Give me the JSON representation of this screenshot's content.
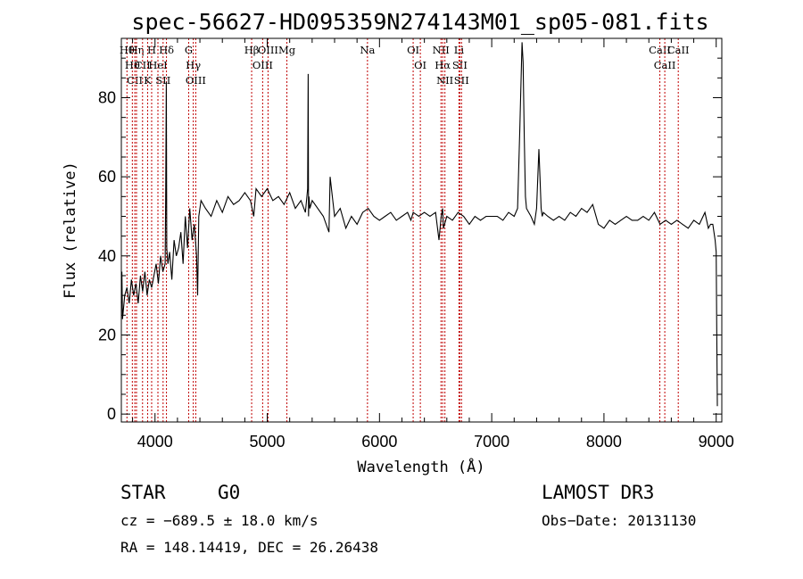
{
  "chart_data": {
    "type": "line",
    "title": "spec-56627-HD095359N274143M01_sp05-081.fits",
    "xlabel": "Wavelength (Å)",
    "ylabel": "Flux (relative)",
    "xlim": [
      3700,
      9050
    ],
    "ylim": [
      -2,
      95
    ],
    "xticks": [
      4000,
      5000,
      6000,
      7000,
      8000,
      9000
    ],
    "yticks": [
      0,
      20,
      40,
      60,
      80
    ],
    "series": [
      {
        "name": "spectrum",
        "x": [
          3700,
          3705,
          3710,
          3730,
          3750,
          3770,
          3790,
          3810,
          3830,
          3850,
          3870,
          3890,
          3910,
          3930,
          3950,
          3970,
          3990,
          4010,
          4030,
          4050,
          4070,
          4090,
          4095,
          4101,
          4105,
          4115,
          4130,
          4150,
          4170,
          4190,
          4210,
          4230,
          4250,
          4270,
          4290,
          4310,
          4330,
          4350,
          4370,
          4380,
          4390,
          4410,
          4450,
          4500,
          4550,
          4600,
          4650,
          4700,
          4750,
          4800,
          4850,
          4880,
          4900,
          4950,
          5000,
          5050,
          5100,
          5150,
          5200,
          5250,
          5300,
          5340,
          5360,
          5365,
          5368,
          5372,
          5380,
          5400,
          5450,
          5500,
          5550,
          5560,
          5600,
          5650,
          5700,
          5750,
          5800,
          5850,
          5900,
          5950,
          6000,
          6050,
          6100,
          6150,
          6200,
          6250,
          6280,
          6300,
          6350,
          6400,
          6450,
          6500,
          6530,
          6550,
          6563,
          6570,
          6600,
          6650,
          6700,
          6750,
          6800,
          6850,
          6900,
          6950,
          7000,
          7050,
          7100,
          7150,
          7200,
          7230,
          7250,
          7270,
          7280,
          7290,
          7300,
          7310,
          7330,
          7350,
          7380,
          7400,
          7420,
          7430,
          7440,
          7450,
          7460,
          7500,
          7550,
          7600,
          7650,
          7700,
          7750,
          7800,
          7850,
          7900,
          7950,
          8000,
          8050,
          8100,
          8150,
          8200,
          8250,
          8300,
          8350,
          8400,
          8450,
          8500,
          8550,
          8600,
          8650,
          8700,
          8750,
          8800,
          8850,
          8900,
          8930,
          8950,
          8970,
          8990,
          9000,
          9005,
          9010
        ],
        "values": [
          28,
          36,
          24,
          30,
          32,
          28,
          34,
          30,
          33,
          28,
          35,
          31,
          36,
          30,
          34,
          32,
          35,
          38,
          33,
          40,
          36,
          38,
          55,
          84,
          42,
          38,
          41,
          34,
          44,
          40,
          42,
          46,
          38,
          50,
          42,
          52,
          44,
          48,
          40,
          30,
          50,
          54,
          52,
          50,
          54,
          51,
          55,
          53,
          54,
          56,
          54,
          50,
          57,
          55,
          57,
          54,
          55,
          53,
          56,
          52,
          54,
          51,
          57,
          86,
          50,
          55,
          52,
          54,
          52,
          50,
          46,
          60,
          50,
          52,
          47,
          50,
          48,
          51,
          52,
          50,
          49,
          50,
          51,
          49,
          50,
          51,
          49,
          51,
          50,
          51,
          50,
          51,
          44,
          50,
          52,
          47,
          50,
          49,
          51,
          50,
          48,
          50,
          49,
          50,
          50,
          50,
          49,
          51,
          50,
          52,
          72,
          94,
          89,
          70,
          55,
          52,
          51,
          50,
          48,
          52,
          67,
          60,
          52,
          50,
          51,
          50,
          49,
          50,
          49,
          51,
          50,
          52,
          51,
          53,
          48,
          47,
          49,
          48,
          49,
          50,
          49,
          49,
          50,
          49,
          51,
          48,
          49,
          48,
          49,
          48,
          47,
          49,
          48,
          51,
          47,
          48,
          48,
          44,
          41,
          22,
          2
        ]
      }
    ],
    "line_markers": [
      {
        "wavelength": 3750,
        "label": "Hθ"
      },
      {
        "wavelength": 3798,
        "label": "Hθ"
      },
      {
        "wavelength": 3820,
        "label": "CII"
      },
      {
        "wavelength": 3835,
        "label": "Hη"
      },
      {
        "wavelength": 3889,
        "label": "CII"
      },
      {
        "wavelength": 3934,
        "label": "K"
      },
      {
        "wavelength": 3970,
        "label": "H"
      },
      {
        "wavelength": 4026,
        "label": "HeI"
      },
      {
        "wavelength": 4072,
        "label": "SII"
      },
      {
        "wavelength": 4102,
        "label": "Hδ"
      },
      {
        "wavelength": 4300,
        "label": "G"
      },
      {
        "wavelength": 4341,
        "label": "Hγ"
      },
      {
        "wavelength": 4363,
        "label": "OIII"
      },
      {
        "wavelength": 4861,
        "label": "Hβ"
      },
      {
        "wavelength": 4959,
        "label": "OIII"
      },
      {
        "wavelength": 5007,
        "label": "OIII"
      },
      {
        "wavelength": 5175,
        "label": "Mg"
      },
      {
        "wavelength": 5893,
        "label": "Na"
      },
      {
        "wavelength": 6300,
        "label": "OI"
      },
      {
        "wavelength": 6364,
        "label": "OI"
      },
      {
        "wavelength": 6548,
        "label": "NII"
      },
      {
        "wavelength": 6563,
        "label": "Hα"
      },
      {
        "wavelength": 6583,
        "label": "NII"
      },
      {
        "wavelength": 6708,
        "label": "Li"
      },
      {
        "wavelength": 6716,
        "label": "SII"
      },
      {
        "wavelength": 6731,
        "label": "SII"
      },
      {
        "wavelength": 8498,
        "label": "CaII"
      },
      {
        "wavelength": 8542,
        "label": "CaII"
      },
      {
        "wavelength": 8662,
        "label": "CaII"
      }
    ]
  },
  "info": {
    "object_class": "STAR",
    "subclass": "G0",
    "survey": "LAMOST DR3",
    "redshift_line": "cz = −689.5 ± 18.0 km/s",
    "obs_date_line": "Obs−Date: 20131130",
    "coords_line": "RA = 148.14419, DEC =  26.26438"
  },
  "colors": {
    "spectrum": "#000000",
    "marker": "#c00000",
    "axes": "#000000"
  }
}
